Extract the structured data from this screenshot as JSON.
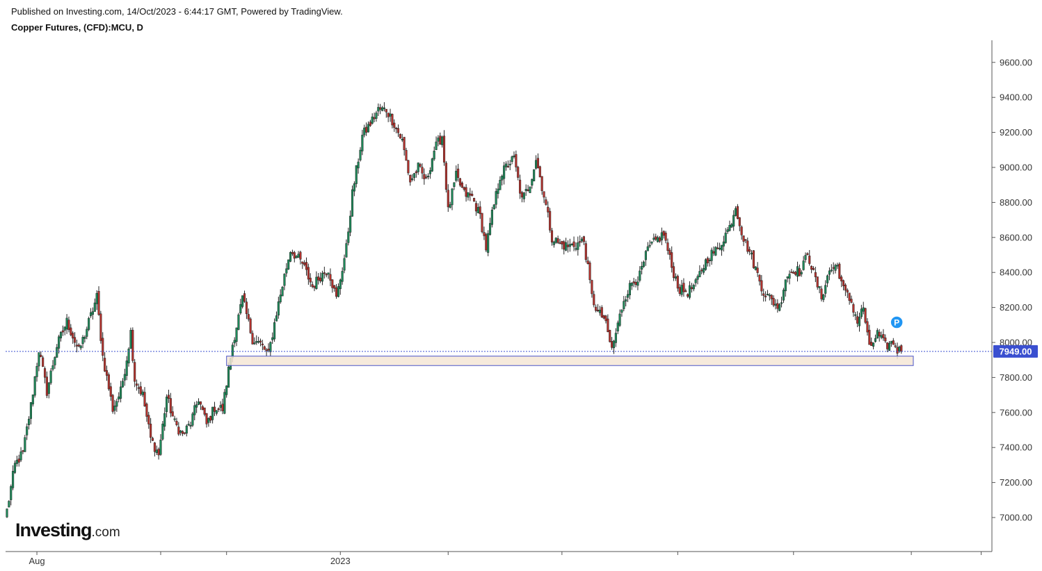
{
  "header": {
    "published": "Published on Investing.com, 14/Oct/2023 - 6:44:17 GMT, Powered by TradingView.",
    "symbol": "Copper Futures, (CFD):MCU, D"
  },
  "logo": {
    "main": "Investing",
    "suffix": ".com"
  },
  "marker": {
    "label": "P",
    "color": "#2196f3"
  },
  "colors": {
    "up": "#1e8a5a",
    "down": "#b5322d",
    "current_line": "#3a4fd0",
    "zone_fill": "#f5e6d6",
    "zone_border": "#4a55c8"
  },
  "chart_data": {
    "type": "candlestick",
    "title": "Copper Futures, (CFD):MCU, D",
    "y_ticks": [
      "7000.00",
      "7200.00",
      "7400.00",
      "7600.00",
      "7800.00",
      "8000.00",
      "8200.00",
      "8400.00",
      "8600.00",
      "8800.00",
      "9000.00",
      "9200.00",
      "9400.00",
      "9600.00"
    ],
    "y_tick_values": [
      7000,
      7200,
      7400,
      7600,
      7800,
      8000,
      8200,
      8400,
      8600,
      8800,
      9000,
      9200,
      9400,
      9600
    ],
    "ylim": [
      6850,
      9720
    ],
    "x_labels": [
      {
        "label": "Aug",
        "index": 15
      },
      {
        "label": "2023",
        "index": 167
      }
    ],
    "current_price": 7949.0,
    "current_price_label": "7949.00",
    "support_zone": {
      "low": 7880,
      "high": 7910,
      "start_index": 110,
      "end_index": 454
    },
    "marker_index": 445,
    "grid": false,
    "close_path": [
      [
        0,
        7040
      ],
      [
        4,
        7300
      ],
      [
        8,
        7370
      ],
      [
        12,
        7640
      ],
      [
        16,
        7960
      ],
      [
        20,
        7720
      ],
      [
        25,
        7980
      ],
      [
        30,
        8120
      ],
      [
        36,
        7950
      ],
      [
        40,
        8080
      ],
      [
        45,
        8260
      ],
      [
        48,
        7920
      ],
      [
        53,
        7620
      ],
      [
        57,
        7720
      ],
      [
        60,
        7910
      ],
      [
        62,
        8060
      ],
      [
        64,
        7790
      ],
      [
        68,
        7700
      ],
      [
        72,
        7450
      ],
      [
        76,
        7360
      ],
      [
        80,
        7690
      ],
      [
        84,
        7540
      ],
      [
        88,
        7470
      ],
      [
        92,
        7540
      ],
      [
        96,
        7680
      ],
      [
        100,
        7530
      ],
      [
        104,
        7630
      ],
      [
        108,
        7620
      ],
      [
        113,
        7990
      ],
      [
        118,
        8250
      ],
      [
        123,
        8020
      ],
      [
        127,
        7990
      ],
      [
        131,
        7930
      ],
      [
        135,
        8170
      ],
      [
        139,
        8380
      ],
      [
        142,
        8530
      ],
      [
        148,
        8450
      ],
      [
        153,
        8320
      ],
      [
        157,
        8380
      ],
      [
        161,
        8420
      ],
      [
        165,
        8250
      ],
      [
        170,
        8540
      ],
      [
        173,
        8850
      ],
      [
        178,
        9180
      ],
      [
        182,
        9250
      ],
      [
        186,
        9330
      ],
      [
        190,
        9330
      ],
      [
        194,
        9250
      ],
      [
        198,
        9150
      ],
      [
        202,
        8920
      ],
      [
        206,
        9000
      ],
      [
        210,
        8920
      ],
      [
        214,
        9100
      ],
      [
        218,
        9180
      ],
      [
        221,
        8750
      ],
      [
        225,
        8950
      ],
      [
        229,
        8850
      ],
      [
        233,
        8830
      ],
      [
        237,
        8720
      ],
      [
        240,
        8540
      ],
      [
        243,
        8730
      ],
      [
        247,
        8950
      ],
      [
        251,
        9020
      ],
      [
        254,
        9050
      ],
      [
        258,
        8810
      ],
      [
        262,
        8910
      ],
      [
        265,
        9050
      ],
      [
        269,
        8840
      ],
      [
        273,
        8600
      ],
      [
        277,
        8560
      ],
      [
        281,
        8550
      ],
      [
        285,
        8560
      ],
      [
        289,
        8580
      ],
      [
        293,
        8260
      ],
      [
        296,
        8170
      ],
      [
        299,
        8140
      ],
      [
        303,
        7960
      ],
      [
        306,
        8100
      ],
      [
        309,
        8250
      ],
      [
        313,
        8340
      ],
      [
        317,
        8380
      ],
      [
        321,
        8530
      ],
      [
        325,
        8580
      ],
      [
        329,
        8620
      ],
      [
        333,
        8430
      ],
      [
        337,
        8300
      ],
      [
        341,
        8290
      ],
      [
        345,
        8330
      ],
      [
        348,
        8420
      ],
      [
        352,
        8500
      ],
      [
        356,
        8530
      ],
      [
        359,
        8600
      ],
      [
        362,
        8660
      ],
      [
        365,
        8780
      ],
      [
        369,
        8590
      ],
      [
        372,
        8520
      ],
      [
        375,
        8420
      ],
      [
        379,
        8290
      ],
      [
        383,
        8240
      ],
      [
        387,
        8200
      ],
      [
        390,
        8370
      ],
      [
        394,
        8420
      ],
      [
        398,
        8400
      ],
      [
        401,
        8520
      ],
      [
        404,
        8390
      ],
      [
        408,
        8260
      ],
      [
        412,
        8410
      ],
      [
        416,
        8440
      ],
      [
        419,
        8300
      ],
      [
        423,
        8230
      ],
      [
        426,
        8120
      ],
      [
        429,
        8200
      ],
      [
        432,
        7960
      ],
      [
        436,
        8050
      ],
      [
        440,
        7980
      ],
      [
        444,
        8000
      ],
      [
        446,
        7960
      ],
      [
        448,
        7949
      ]
    ]
  }
}
